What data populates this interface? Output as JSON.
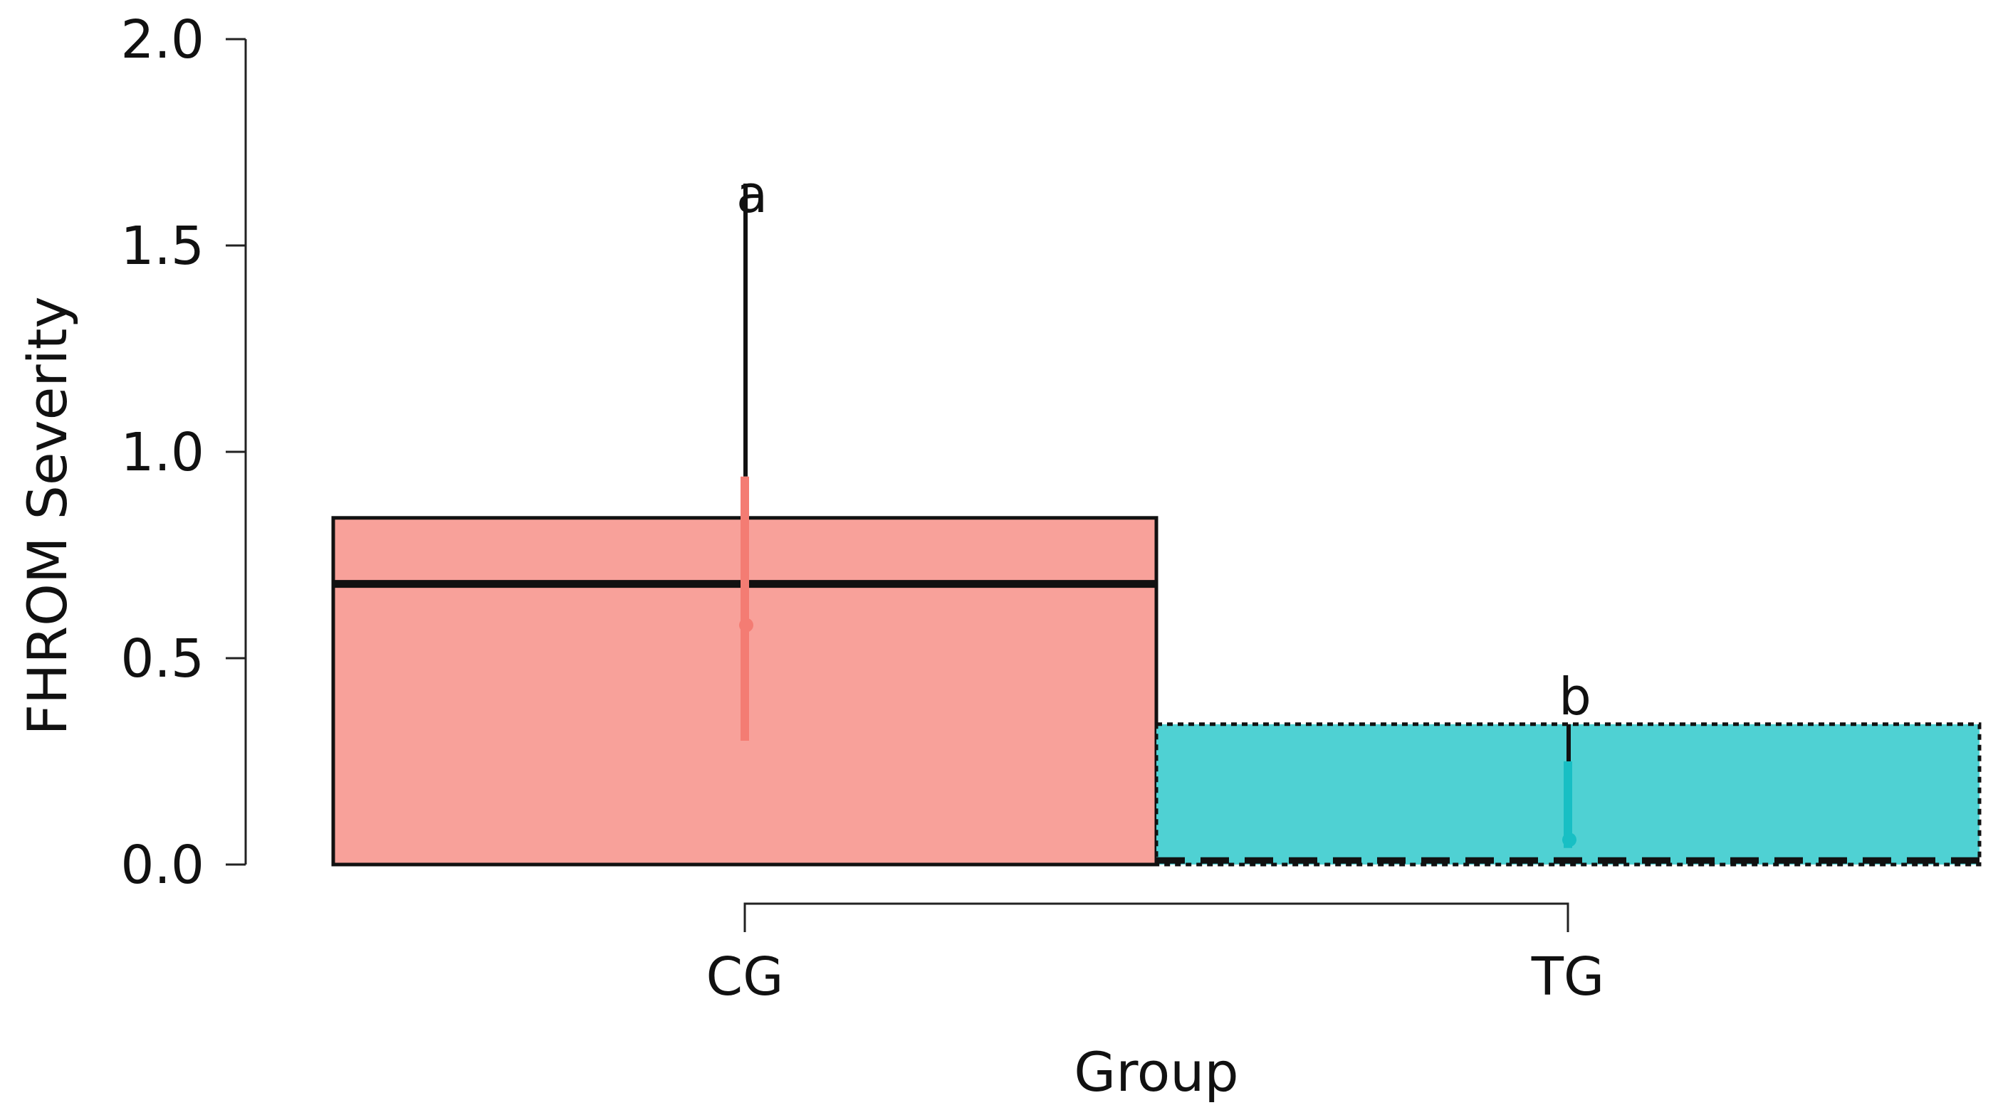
{
  "chart_data": {
    "type": "bar",
    "title": "",
    "xlabel": "Group",
    "ylabel": "FHROM Severity",
    "ylim": [
      0,
      2.0
    ],
    "yticks": [
      0.0,
      0.5,
      1.0,
      1.5,
      2.0
    ],
    "ytick_labels": [
      "0.0",
      "0.5",
      "1.0",
      "1.5",
      "2.0"
    ],
    "grid": false,
    "legend": "none",
    "categories": [
      "CG",
      "TG"
    ],
    "bars": [
      {
        "category": "CG",
        "upper_value": 0.84,
        "median": 0.68,
        "mean": 0.58,
        "ci_low": 0.3,
        "ci_high": 0.94,
        "whisker_high": 1.65,
        "letter": "a",
        "fill_color": "#F8A19A",
        "accent_color": "#F47C73",
        "border_style": "solid"
      },
      {
        "category": "TG",
        "upper_value": 0.34,
        "median": 0.01,
        "mean": 0.06,
        "ci_low": 0.04,
        "ci_high": 0.25,
        "whisker_high": 0.34,
        "letter": "b",
        "fill_color": "#4FD1D3",
        "accent_color": "#18BFC4",
        "border_style": "dotted"
      }
    ]
  }
}
